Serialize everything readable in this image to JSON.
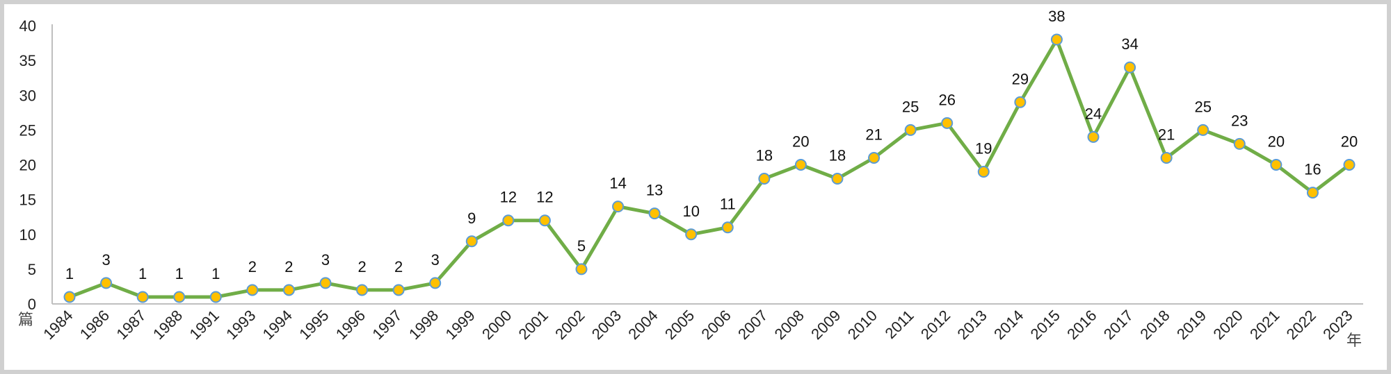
{
  "chart_data": {
    "type": "line",
    "title": "",
    "xlabel": "年",
    "ylabel": "篇",
    "ylim": [
      0,
      40
    ],
    "yticks": [
      0,
      5,
      10,
      15,
      20,
      25,
      30,
      35,
      40
    ],
    "grid": false,
    "legend": "none",
    "colors": {
      "line": "#70ad47",
      "marker_fill": "#ffc000",
      "marker_edge": "#5b9bd5",
      "axis": "#bfbfbf"
    },
    "categories": [
      "1984",
      "1986",
      "1987",
      "1988",
      "1991",
      "1993",
      "1994",
      "1995",
      "1996",
      "1997",
      "1998",
      "1999",
      "2000",
      "2001",
      "2002",
      "2003",
      "2004",
      "2005",
      "2006",
      "2007",
      "2008",
      "2009",
      "2010",
      "2011",
      "2012",
      "2013",
      "2014",
      "2015",
      "2016",
      "2017",
      "2018",
      "2019",
      "2020",
      "2021",
      "2022",
      "2023"
    ],
    "series": [
      {
        "values": [
          1,
          3,
          1,
          1,
          1,
          2,
          2,
          3,
          2,
          2,
          3,
          9,
          12,
          12,
          5,
          14,
          13,
          10,
          11,
          18,
          20,
          18,
          21,
          25,
          26,
          19,
          29,
          38,
          24,
          34,
          21,
          25,
          23,
          20,
          16,
          20
        ]
      }
    ]
  }
}
